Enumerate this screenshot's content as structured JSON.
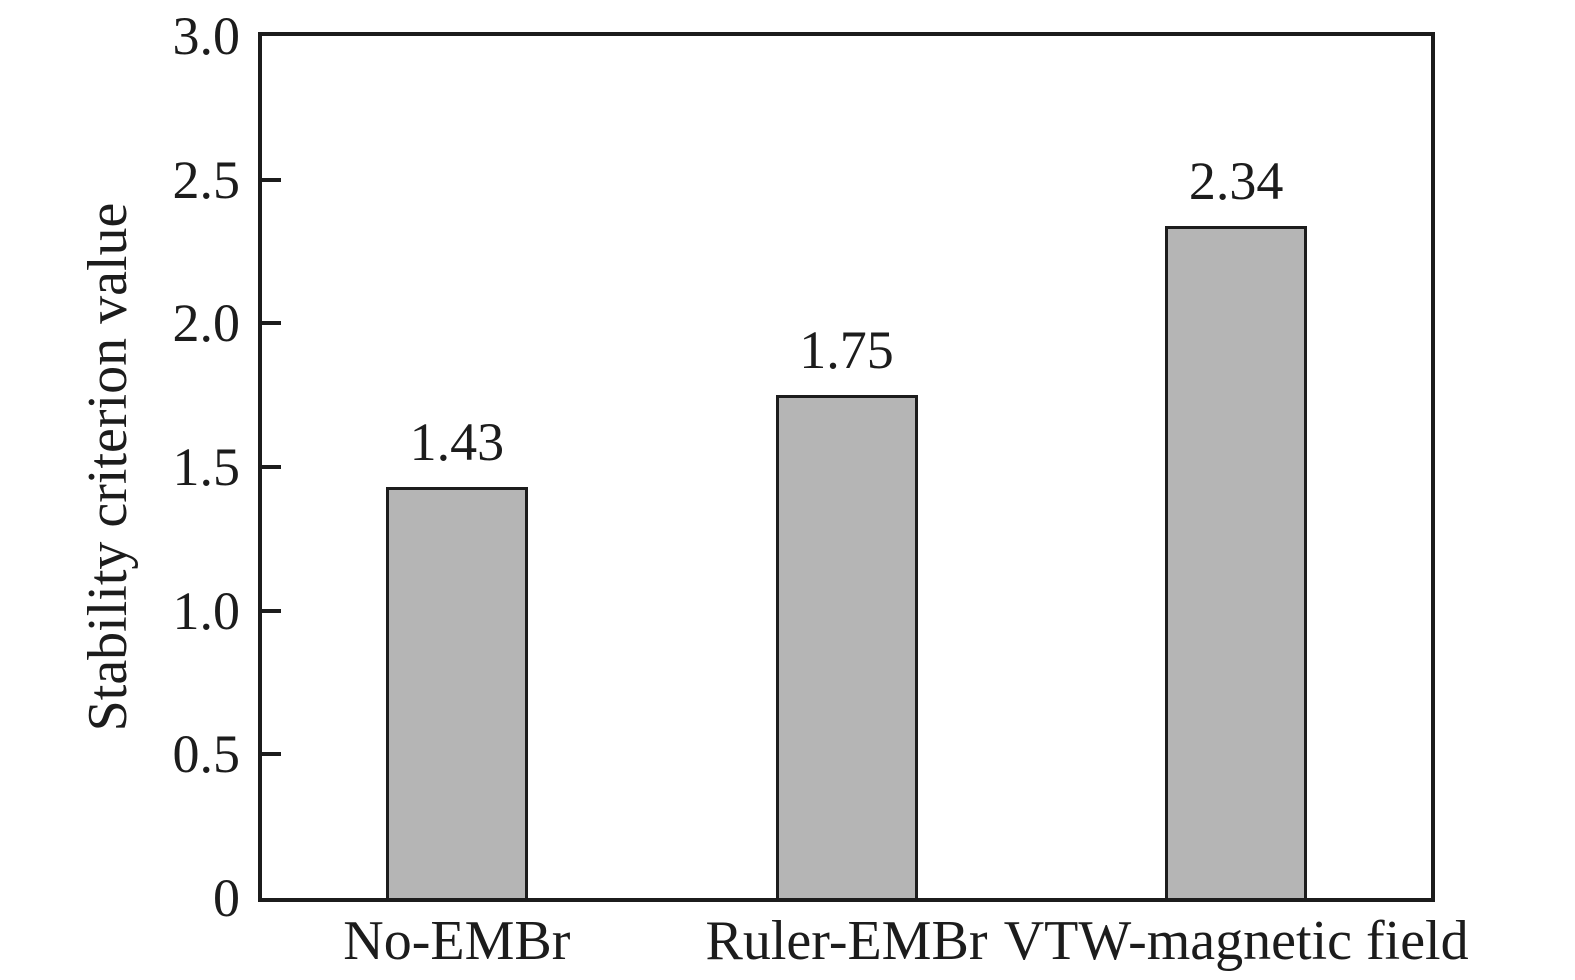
{
  "figure": {
    "ylabel": "Stability criterion value"
  },
  "chart_data": {
    "type": "bar",
    "categories": [
      "No-EMBr",
      "Ruler-EMBr",
      "VTW-magnetic field"
    ],
    "values": [
      1.43,
      1.75,
      2.34
    ],
    "value_labels": [
      "1.43",
      "1.75",
      "2.34"
    ],
    "title": "",
    "xlabel": "",
    "ylabel": "Stability criterion value",
    "ylim": [
      0,
      3.0
    ],
    "yticks": [
      0,
      0.5,
      1.0,
      1.5,
      2.0,
      2.5,
      3.0
    ],
    "ytick_labels": [
      "0",
      "0.5",
      "1.0",
      "1.5",
      "2.0",
      "2.5",
      "3.0"
    ],
    "grid": false,
    "legend": false,
    "bar_fill_color": "#b5b5b5",
    "bar_border_color": "#1c1c1c",
    "axis_color": "#1c1c1c",
    "background": "#ffffff"
  }
}
